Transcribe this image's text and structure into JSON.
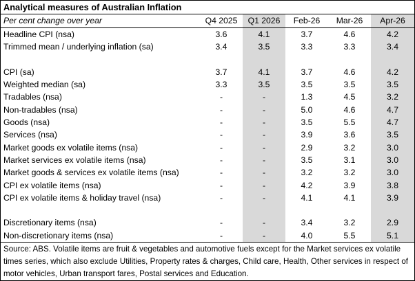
{
  "title": "Analytical measures of Australian Inflation",
  "subtitle": "Per cent change over year",
  "columns": [
    "Q4 2025",
    "Q1 2026",
    "Feb-26",
    "Mar-26",
    "Apr-26"
  ],
  "shaded_columns": [
    1,
    4
  ],
  "shade_color": "#d9d9d9",
  "rows": [
    {
      "label": "Headline CPI (nsa)",
      "values": [
        "3.6",
        "4.1",
        "3.7",
        "4.6",
        "4.2"
      ]
    },
    {
      "label": "Trimmed mean / underlying inflation (sa)",
      "values": [
        "3.4",
        "3.5",
        "3.3",
        "3.3",
        "3.4"
      ]
    },
    {
      "gap": true
    },
    {
      "label": "CPI (sa)",
      "values": [
        "3.7",
        "4.1",
        "3.7",
        "4.6",
        "4.2"
      ]
    },
    {
      "label": "Weighted median (sa)",
      "values": [
        "3.3",
        "3.5",
        "3.5",
        "3.5",
        "3.5"
      ]
    },
    {
      "label": "Tradables (nsa)",
      "values": [
        "-",
        "-",
        "1.3",
        "4.5",
        "3.2"
      ]
    },
    {
      "label": "Non-tradables (nsa)",
      "values": [
        "-",
        "-",
        "5.0",
        "4.6",
        "4.7"
      ]
    },
    {
      "label": "Goods (nsa)",
      "values": [
        "-",
        "-",
        "3.5",
        "5.5",
        "4.7"
      ]
    },
    {
      "label": "Services (nsa)",
      "values": [
        "-",
        "-",
        "3.9",
        "3.6",
        "3.5"
      ]
    },
    {
      "label": "Market goods ex volatile items (nsa)",
      "values": [
        "-",
        "-",
        "2.9",
        "3.2",
        "3.0"
      ]
    },
    {
      "label": "Market services ex volatile items (nsa)",
      "values": [
        "-",
        "-",
        "3.5",
        "3.1",
        "3.0"
      ]
    },
    {
      "label": "Market goods & services ex volatile items (nsa)",
      "values": [
        "-",
        "-",
        "3.2",
        "3.2",
        "3.0"
      ]
    },
    {
      "label": "CPI ex volatile items (nsa)",
      "values": [
        "-",
        "-",
        "4.2",
        "3.9",
        "3.8"
      ]
    },
    {
      "label": "CPI ex volatile items & holiday travel (nsa)",
      "values": [
        "-",
        "-",
        "4.1",
        "4.1",
        "3.9"
      ]
    },
    {
      "gap": true
    },
    {
      "label": "Discretionary items (nsa)",
      "values": [
        "-",
        "-",
        "3.4",
        "3.2",
        "2.9"
      ]
    },
    {
      "label": "Non-discretionary items (nsa)",
      "values": [
        "-",
        "-",
        "4.0",
        "5.5",
        "5.1"
      ]
    }
  ],
  "source": "Source: ABS. Volatile items are fruit & vegetables and automotive fuels except for the Market services ex volatile times series, which also exclude Utilities, Property rates & charges, Child care, Health, Other services in respect of motor vehicles, Urban transport fares, Postal services and Education."
}
